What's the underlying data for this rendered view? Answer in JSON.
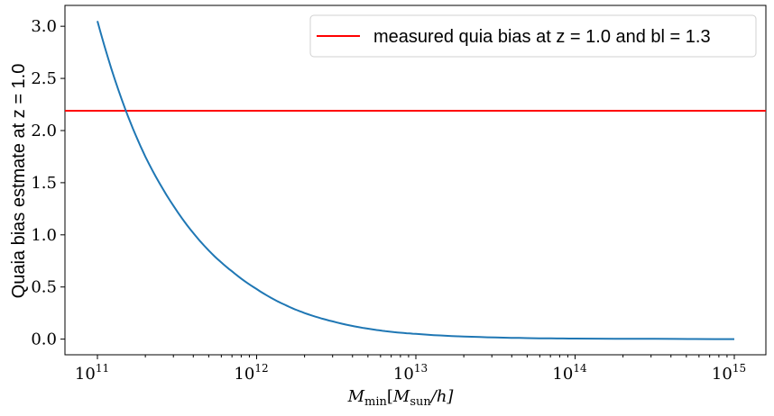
{
  "chart_data": {
    "type": "line",
    "x_scale": "log",
    "xlabel": "M_min[M_sun/h]",
    "xlabel_parts": {
      "main": "M",
      "sub1": "min",
      "bracket_open": "[",
      "main2": "M",
      "sub2": "sun",
      "tail": "/h]"
    },
    "ylabel": "Quaia bias estmate at z = 1.0",
    "xlim": [
      100000000000.0,
      1000000000000000.0
    ],
    "ylim": [
      -0.15,
      3.2
    ],
    "x_ticks": [
      {
        "value": 100000000000.0,
        "base": "10",
        "exp": "11"
      },
      {
        "value": 1000000000000.0,
        "base": "10",
        "exp": "12"
      },
      {
        "value": 10000000000000.0,
        "base": "10",
        "exp": "13"
      },
      {
        "value": 100000000000000.0,
        "base": "10",
        "exp": "14"
      },
      {
        "value": 1000000000000000.0,
        "base": "10",
        "exp": "15"
      }
    ],
    "y_ticks": [
      {
        "value": 0.0,
        "label": "0.0"
      },
      {
        "value": 0.5,
        "label": "0.5"
      },
      {
        "value": 1.0,
        "label": "1.0"
      },
      {
        "value": 1.5,
        "label": "1.5"
      },
      {
        "value": 2.0,
        "label": "2.0"
      },
      {
        "value": 2.5,
        "label": "2.5"
      },
      {
        "value": 3.0,
        "label": "3.0"
      }
    ],
    "series": [
      {
        "color": "#1f77b4",
        "x": [
          100000000000.0,
          150000000000.0,
          200000000000.0,
          300000000000.0,
          500000000000.0,
          700000000000.0,
          1000000000000.0,
          1500000000000.0,
          2000000000000.0,
          3000000000000.0,
          5000000000000.0,
          7000000000000.0,
          10000000000000.0,
          20000000000000.0,
          50000000000000.0,
          100000000000000.0,
          1000000000000000.0
        ],
        "values": [
          3.05,
          2.2,
          1.75,
          1.28,
          0.85,
          0.65,
          0.48,
          0.33,
          0.25,
          0.17,
          0.1,
          0.07,
          0.05,
          0.025,
          0.01,
          0.005,
          0.0
        ]
      }
    ],
    "hlines": [
      {
        "name": "measured quia bias at z = 1.0 and bl = 1.3",
        "y": 2.19,
        "color": "#ff0000"
      }
    ],
    "legend_position": "top-right",
    "grid": false
  }
}
